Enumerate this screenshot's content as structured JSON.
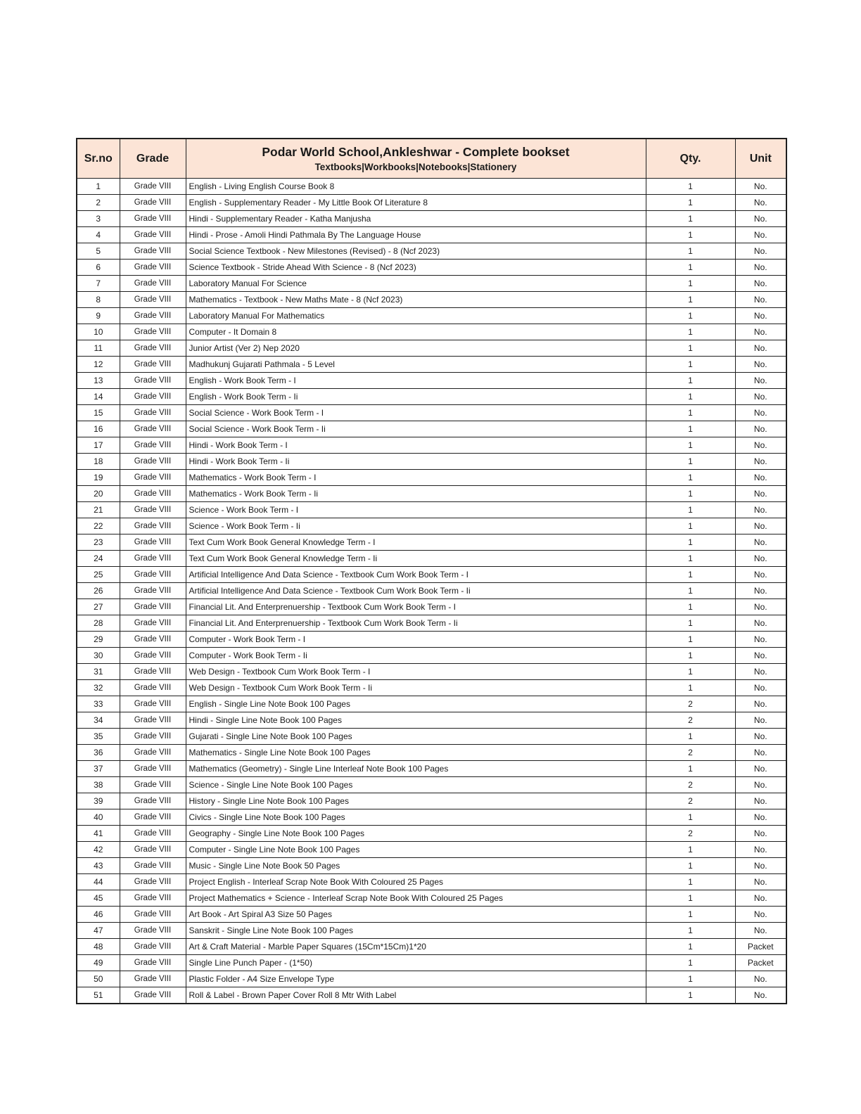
{
  "colors": {
    "header_bg": "#fce4d6",
    "border": "#1f1f1f",
    "text": "#1a1a1a"
  },
  "table": {
    "headers": {
      "srno": "Sr.no",
      "grade": "Grade",
      "title": "Podar World School,Ankleshwar - Complete bookset",
      "subtitle": "Textbooks|Workbooks|Notebooks|Stationery",
      "qty": "Qty.",
      "unit": "Unit"
    },
    "rows": [
      [
        "1",
        "Grade VIII",
        "English - Living English Course Book 8",
        "1",
        "No."
      ],
      [
        "2",
        "Grade VIII",
        "English - Supplementary Reader - My Little Book Of Literature 8",
        "1",
        "No."
      ],
      [
        "3",
        "Grade VIII",
        "Hindi - Supplementary Reader -  Katha Manjusha",
        "1",
        "No."
      ],
      [
        "4",
        "Grade VIII",
        "Hindi - Prose - Amoli Hindi Pathmala  By The Language House",
        "1",
        "No."
      ],
      [
        "5",
        "Grade VIII",
        "Social Science Textbook - New Milestones (Revised) - 8 (Ncf 2023)",
        "1",
        "No."
      ],
      [
        "6",
        "Grade VIII",
        "Science Textbook - Stride Ahead With Science - 8 (Ncf 2023)",
        "1",
        "No."
      ],
      [
        "7",
        "Grade VIII",
        "Laboratory Manual For Science",
        "1",
        "No."
      ],
      [
        "8",
        "Grade VIII",
        "Mathematics - Textbook - New Maths Mate - 8 (Ncf 2023)",
        "1",
        "No."
      ],
      [
        "9",
        "Grade VIII",
        "Laboratory Manual For Mathematics",
        "1",
        "No."
      ],
      [
        "10",
        "Grade VIII",
        "Computer - It Domain 8",
        "1",
        "No."
      ],
      [
        "11",
        "Grade VIII",
        "Junior Artist (Ver 2) Nep 2020",
        "1",
        "No."
      ],
      [
        "12",
        "Grade VIII",
        "Madhukunj Gujarati Pathmala - 5 Level",
        "1",
        "No."
      ],
      [
        "13",
        "Grade VIII",
        "English - Work Book Term - I",
        "1",
        "No."
      ],
      [
        "14",
        "Grade VIII",
        "English - Work Book Term - Ii",
        "1",
        "No."
      ],
      [
        "15",
        "Grade VIII",
        "Social Science - Work Book Term - I",
        "1",
        "No."
      ],
      [
        "16",
        "Grade VIII",
        "Social Science - Work Book Term - Ii",
        "1",
        "No."
      ],
      [
        "17",
        "Grade VIII",
        "Hindi - Work Book Term - I",
        "1",
        "No."
      ],
      [
        "18",
        "Grade VIII",
        "Hindi - Work Book Term - Ii",
        "1",
        "No."
      ],
      [
        "19",
        "Grade VIII",
        "Mathematics - Work Book Term - I",
        "1",
        "No."
      ],
      [
        "20",
        "Grade VIII",
        "Mathematics - Work Book Term - Ii",
        "1",
        "No."
      ],
      [
        "21",
        "Grade VIII",
        "Science - Work Book Term - I",
        "1",
        "No."
      ],
      [
        "22",
        "Grade VIII",
        "Science - Work Book Term - Ii",
        "1",
        "No."
      ],
      [
        "23",
        "Grade VIII",
        "Text Cum Work Book General Knowledge  Term - I",
        "1",
        "No."
      ],
      [
        "24",
        "Grade VIII",
        "Text Cum Work Book General Knowledge  Term - Ii",
        "1",
        "No."
      ],
      [
        "25",
        "Grade VIII",
        "Artificial Intelligence And Data Science - Textbook Cum Work Book Term - I",
        "1",
        "No."
      ],
      [
        "26",
        "Grade VIII",
        "Artificial Intelligence And Data Science - Textbook Cum Work Book Term - Ii",
        "1",
        "No."
      ],
      [
        "27",
        "Grade VIII",
        "Financial Lit. And Enterprenuership - Textbook Cum Work Book Term - I",
        "1",
        "No."
      ],
      [
        "28",
        "Grade VIII",
        "Financial Lit. And Enterprenuership - Textbook Cum Work Book Term - Ii",
        "1",
        "No."
      ],
      [
        "29",
        "Grade VIII",
        "Computer - Work Book Term - I",
        "1",
        "No."
      ],
      [
        "30",
        "Grade VIII",
        "Computer - Work Book Term - Ii",
        "1",
        "No."
      ],
      [
        "31",
        "Grade VIII",
        "Web Design - Textbook Cum Work Book Term - I",
        "1",
        "No."
      ],
      [
        "32",
        "Grade VIII",
        "Web Design - Textbook Cum Work Book Term - Ii",
        "1",
        "No."
      ],
      [
        "33",
        "Grade VIII",
        "English - Single Line Note Book 100 Pages",
        "2",
        "No."
      ],
      [
        "34",
        "Grade VIII",
        "Hindi - Single Line Note Book 100 Pages",
        "2",
        "No."
      ],
      [
        "35",
        "Grade VIII",
        "Gujarati - Single Line Note Book 100 Pages",
        "1",
        "No."
      ],
      [
        "36",
        "Grade VIII",
        "Mathematics  -  Single Line Note Book 100 Pages",
        "2",
        "No."
      ],
      [
        "37",
        "Grade VIII",
        "Mathematics (Geometry) - Single Line Interleaf Note Book 100 Pages",
        "1",
        "No."
      ],
      [
        "38",
        "Grade VIII",
        "Science - Single Line Note Book 100 Pages",
        "2",
        "No."
      ],
      [
        "39",
        "Grade VIII",
        "History - Single Line Note Book 100 Pages",
        "2",
        "No."
      ],
      [
        "40",
        "Grade VIII",
        "Civics - Single Line Note Book 100 Pages",
        "1",
        "No."
      ],
      [
        "41",
        "Grade VIII",
        "Geography - Single Line Note Book 100 Pages",
        "2",
        "No."
      ],
      [
        "42",
        "Grade VIII",
        "Computer - Single Line Note Book 100 Pages",
        "1",
        "No."
      ],
      [
        "43",
        "Grade VIII",
        "Music - Single Line Note Book 50 Pages",
        "1",
        "No."
      ],
      [
        "44",
        "Grade VIII",
        "Project English - Interleaf Scrap Note Book With Coloured 25 Pages",
        "1",
        "No."
      ],
      [
        "45",
        "Grade VIII",
        "Project Mathematics + Science - Interleaf Scrap Note Book With Coloured 25 Pages",
        "1",
        "No."
      ],
      [
        "46",
        "Grade VIII",
        "Art Book - Art Spiral A3 Size 50 Pages",
        "1",
        "No."
      ],
      [
        "47",
        "Grade VIII",
        "Sanskrit - Single Line Note Book 100 Pages",
        "1",
        "No."
      ],
      [
        "48",
        "Grade VIII",
        "Art & Craft Material - Marble Paper Squares (15Cm*15Cm)1*20",
        "1",
        "Packet"
      ],
      [
        "49",
        "Grade VIII",
        "Single Line Punch Paper - (1*50)",
        "1",
        "Packet"
      ],
      [
        "50",
        "Grade VIII",
        "Plastic Folder - A4 Size Envelope Type",
        "1",
        "No."
      ],
      [
        "51",
        "Grade VIII",
        "Roll & Label - Brown Paper Cover Roll 8 Mtr With Label",
        "1",
        "No."
      ]
    ]
  }
}
